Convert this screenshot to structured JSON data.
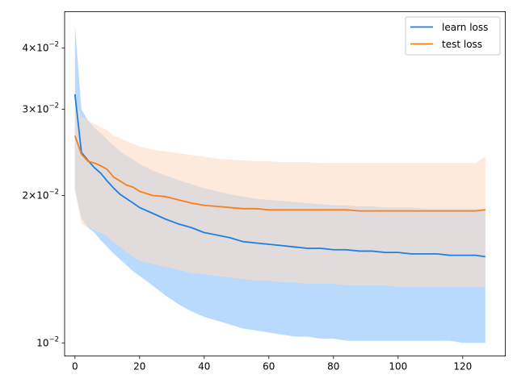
{
  "chart_data": {
    "type": "line",
    "title": "",
    "xlabel": "",
    "ylabel": "",
    "yscale": "log",
    "xlim": [
      -3.2,
      133.2
    ],
    "ylim": [
      0.0094,
      0.0475
    ],
    "x_ticks": [
      0,
      20,
      40,
      60,
      80,
      100,
      120
    ],
    "x_tick_labels": [
      "0",
      "20",
      "40",
      "60",
      "80",
      "100",
      "120"
    ],
    "y_ticks": [
      0.01,
      0.02,
      0.03,
      0.04
    ],
    "y_tick_labels": [
      {
        "base": "10",
        "mant": "",
        "exp": "−2"
      },
      {
        "base": "10",
        "mant": "2",
        "exp": "−2"
      },
      {
        "base": "10",
        "mant": "3",
        "exp": "−2"
      },
      {
        "base": "10",
        "mant": "4",
        "exp": "−2"
      }
    ],
    "grid": false,
    "legend": "top-right",
    "x": [
      0,
      2,
      4,
      6,
      8,
      10,
      12,
      14,
      16,
      18,
      20,
      24,
      28,
      32,
      36,
      40,
      44,
      48,
      52,
      56,
      60,
      64,
      68,
      72,
      76,
      80,
      84,
      88,
      92,
      96,
      100,
      104,
      108,
      112,
      116,
      120,
      124,
      127
    ],
    "series": [
      {
        "name": "learn loss",
        "color": "#1f77b4",
        "line_color": "#1e7fe0",
        "fill_color": "#b9dafc",
        "values": [
          0.0322,
          0.0245,
          0.0236,
          0.0228,
          0.0222,
          0.0214,
          0.0207,
          0.0201,
          0.0197,
          0.0193,
          0.0189,
          0.0184,
          0.0179,
          0.0175,
          0.0172,
          0.0168,
          0.0166,
          0.0164,
          0.0161,
          0.016,
          0.0159,
          0.0158,
          0.0157,
          0.0156,
          0.0156,
          0.0155,
          0.0155,
          0.0154,
          0.0154,
          0.0153,
          0.0153,
          0.0152,
          0.0152,
          0.0152,
          0.0151,
          0.0151,
          0.0151,
          0.015
        ],
        "lower": [
          0.0205,
          0.018,
          0.0172,
          0.0168,
          0.0162,
          0.0157,
          0.0152,
          0.0148,
          0.0144,
          0.014,
          0.0137,
          0.0131,
          0.0125,
          0.012,
          0.0116,
          0.0113,
          0.0111,
          0.0109,
          0.0107,
          0.0106,
          0.0105,
          0.0104,
          0.0103,
          0.0103,
          0.0102,
          0.0102,
          0.0101,
          0.0101,
          0.0101,
          0.0101,
          0.0101,
          0.0101,
          0.0101,
          0.0101,
          0.0101,
          0.01,
          0.01,
          0.01
        ],
        "upper": [
          0.0445,
          0.03,
          0.0285,
          0.0275,
          0.0268,
          0.026,
          0.0253,
          0.0246,
          0.0241,
          0.0237,
          0.0232,
          0.0225,
          0.022,
          0.0215,
          0.0211,
          0.0207,
          0.0204,
          0.0201,
          0.0199,
          0.0197,
          0.0196,
          0.0195,
          0.0194,
          0.0193,
          0.0192,
          0.0191,
          0.0191,
          0.019,
          0.019,
          0.0189,
          0.0189,
          0.0189,
          0.0188,
          0.0188,
          0.0188,
          0.0188,
          0.0188,
          0.0188
        ]
      },
      {
        "name": "test loss",
        "color": "#ff7f0e",
        "line_color": "#f57f1c",
        "fill_color": "#fddcc4",
        "values": [
          0.0265,
          0.0243,
          0.0235,
          0.0233,
          0.023,
          0.0226,
          0.0218,
          0.0214,
          0.021,
          0.0208,
          0.0204,
          0.02,
          0.0199,
          0.0196,
          0.0193,
          0.0191,
          0.019,
          0.0189,
          0.0188,
          0.0188,
          0.0187,
          0.0187,
          0.0187,
          0.0187,
          0.0187,
          0.0187,
          0.0187,
          0.0186,
          0.0186,
          0.0186,
          0.0186,
          0.0186,
          0.0186,
          0.0186,
          0.0186,
          0.0186,
          0.0186,
          0.0187
        ],
        "lower": [
          0.0205,
          0.0175,
          0.0172,
          0.017,
          0.0168,
          0.0165,
          0.016,
          0.0157,
          0.0153,
          0.015,
          0.0147,
          0.0145,
          0.0143,
          0.0141,
          0.0139,
          0.0138,
          0.0137,
          0.0136,
          0.0135,
          0.0134,
          0.0134,
          0.0133,
          0.0133,
          0.0132,
          0.0132,
          0.0132,
          0.0131,
          0.0131,
          0.0131,
          0.0131,
          0.013,
          0.013,
          0.013,
          0.013,
          0.013,
          0.013,
          0.013,
          0.013
        ],
        "upper": [
          0.0312,
          0.029,
          0.0285,
          0.028,
          0.0276,
          0.0272,
          0.0265,
          0.0262,
          0.0258,
          0.0255,
          0.0252,
          0.0248,
          0.0246,
          0.0244,
          0.0242,
          0.024,
          0.0238,
          0.0237,
          0.0236,
          0.0235,
          0.0235,
          0.0234,
          0.0234,
          0.0234,
          0.0233,
          0.0233,
          0.0233,
          0.0233,
          0.0233,
          0.0233,
          0.0233,
          0.0233,
          0.0233,
          0.0233,
          0.0233,
          0.0233,
          0.0233,
          0.024
        ]
      }
    ]
  }
}
